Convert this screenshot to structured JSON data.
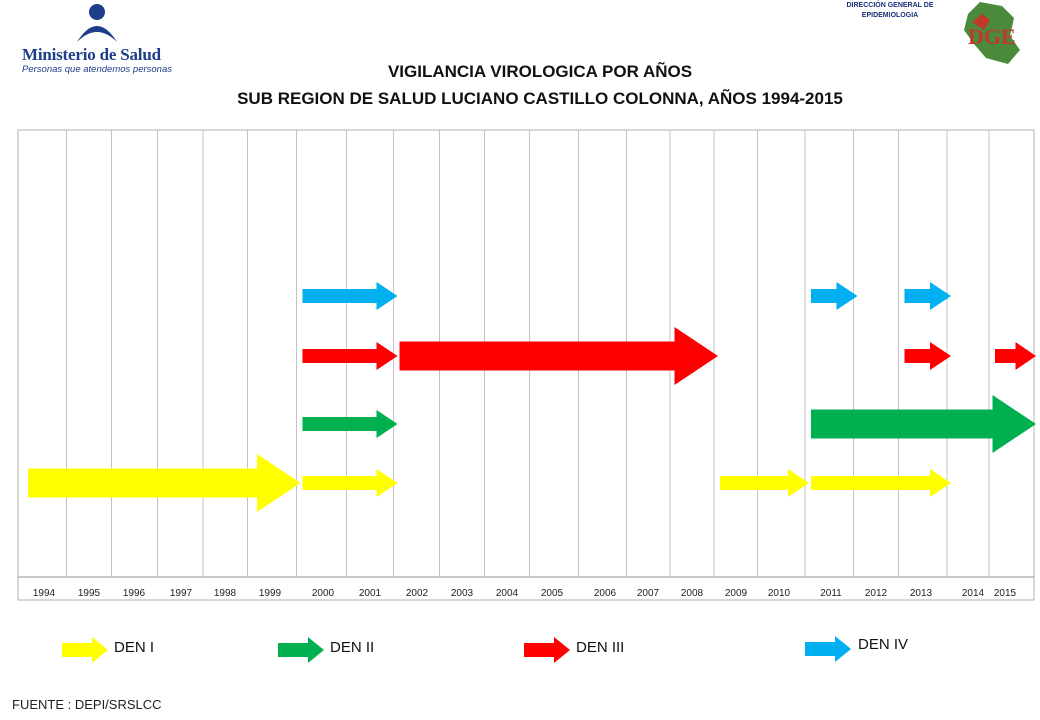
{
  "header": {
    "ministry_name": "Ministerio de Salud",
    "ministry_tagline": "Personas que atendemos personas",
    "agency_line1": "DIRECCIÓN GENERAL DE",
    "agency_line2": "EPIDEMIOLOGIA",
    "agency_logo_text": "DGE"
  },
  "chart_data": {
    "type": "timeline",
    "title": "VIGILANCIA VIROLOGICA POR AÑOS",
    "subtitle": "SUB REGION DE SALUD LUCIANO CASTILLO COLONNA, AÑOS 1994-2015",
    "years": [
      "1994",
      "1995",
      "1996",
      "1997",
      "1998",
      "1999",
      "2000",
      "2001",
      "2002",
      "2003",
      "2004",
      "2005",
      "2006",
      "2007",
      "2008",
      "2009",
      "2010",
      "2011",
      "2012",
      "2013",
      "2014",
      "2015"
    ],
    "series": [
      {
        "name": "DEN I",
        "color": "#ffff00",
        "periods": [
          [
            1994,
            1999
          ],
          [
            2000,
            2001
          ],
          [
            2009,
            2010
          ],
          [
            2011,
            2013
          ]
        ]
      },
      {
        "name": "DEN II",
        "color": "#00b050",
        "periods": [
          [
            2000,
            2001
          ],
          [
            2011,
            2015
          ]
        ]
      },
      {
        "name": "DEN III",
        "color": "#ff0000",
        "periods": [
          [
            2000,
            2001
          ],
          [
            2002,
            2008
          ],
          [
            2013,
            2013
          ],
          [
            2015,
            2015
          ]
        ]
      },
      {
        "name": "DEN IV",
        "color": "#00b0f0",
        "periods": [
          [
            2000,
            2001
          ],
          [
            2011,
            2011
          ],
          [
            2013,
            2013
          ]
        ]
      }
    ],
    "grid": true
  },
  "legend": [
    {
      "label": "DEN I",
      "color": "#ffff00"
    },
    {
      "label": "DEN II",
      "color": "#00b050"
    },
    {
      "label": "DEN III",
      "color": "#ff0000"
    },
    {
      "label": "DEN IV",
      "color": "#00b0f0"
    }
  ],
  "footer": {
    "source": "FUENTE : DEPI/SRSLCC"
  }
}
